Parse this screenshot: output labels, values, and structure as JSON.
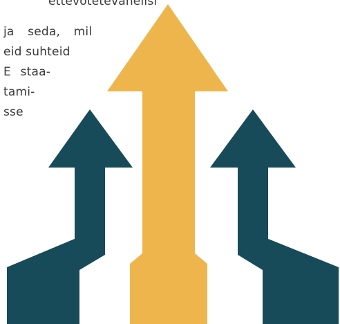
{
  "text_fragment": {
    "lines": [
      "ettevõtetevahelisi",
      "ja seda, mil",
      "eid suhteid",
      "E staa-",
      "tami-",
      "sse"
    ]
  },
  "colors": {
    "center_arrow": "#EFB54D",
    "side_arrows": "#174B5A",
    "text": "#3A3A3A",
    "background": "#FFFFFF"
  },
  "graphic": {
    "icons": [
      "arrow-up-left-icon",
      "arrow-up-center-icon",
      "arrow-up-right-icon"
    ]
  }
}
